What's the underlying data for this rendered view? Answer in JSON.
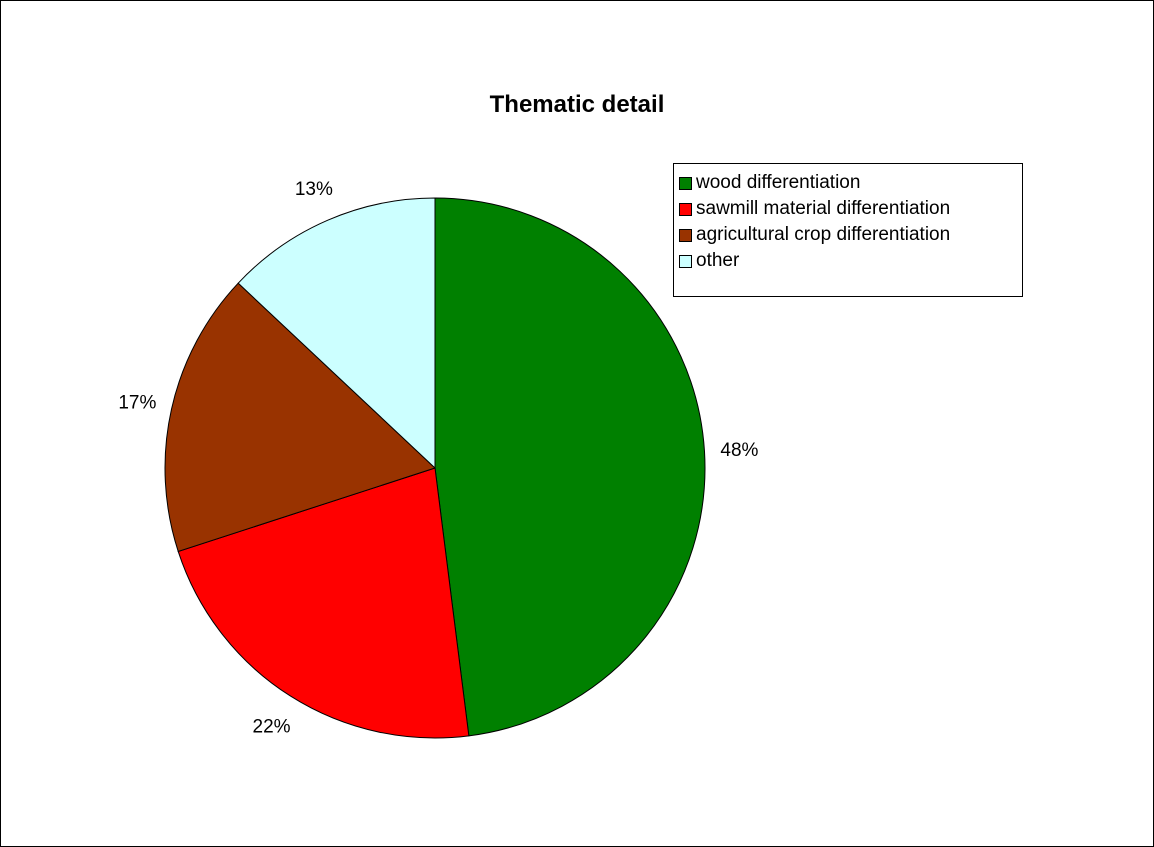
{
  "chart_data": {
    "type": "pie",
    "title": "Thematic detail",
    "slices": [
      {
        "label": "wood differentiation",
        "value": 48,
        "display": "48%",
        "color": "#008000"
      },
      {
        "label": "sawmill material differentiation",
        "value": 22,
        "display": "22%",
        "color": "#FF0000"
      },
      {
        "label": "agricultural crop differentiation",
        "value": 17,
        "display": "17%",
        "color": "#993300"
      },
      {
        "label": "other",
        "value": 13,
        "display": "13%",
        "color": "#CCFFFF"
      }
    ],
    "legend_position": "top-right"
  }
}
